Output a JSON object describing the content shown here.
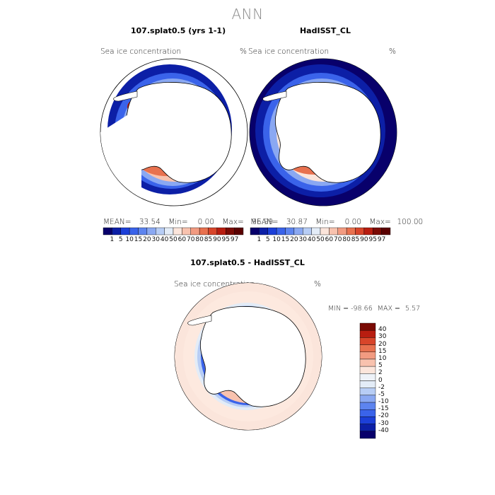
{
  "page_title": "ANN",
  "panels": {
    "model": {
      "title": "107.splat0.5 (yrs 1-1)",
      "field": "Sea ice concentration",
      "units": "%",
      "stats": {
        "mean_label": "MEAN=",
        "mean": "33.54",
        "min_label": "Min=",
        "min": "0.00",
        "max_label": "Max=",
        "max": "96.99"
      }
    },
    "obs": {
      "title": "HadISST_CL",
      "field": "Sea ice concentration",
      "units": "%",
      "stats": {
        "mean_label": "MEAN=",
        "mean": "30.87",
        "min_label": "Min=",
        "min": "0.00",
        "max_label": "Max=",
        "max": "100.00"
      }
    },
    "diff": {
      "title": "107.splat0.5 - HadISST_CL",
      "field": "Sea ice concentration",
      "units": "%",
      "minmax": {
        "min_label": "MIN =",
        "min": "-98.66",
        "max_label": "MAX =",
        "max": "5.57"
      }
    }
  },
  "chart_data": [
    {
      "type": "heatmap",
      "title": "107.splat0.5 (yrs 1-1)",
      "field": "Sea ice concentration",
      "units": "%",
      "projection": "south-polar-stereographic",
      "mean": 33.54,
      "min": 0.0,
      "max": 96.99
    },
    {
      "type": "heatmap",
      "title": "HadISST_CL",
      "field": "Sea ice concentration",
      "units": "%",
      "projection": "south-polar-stereographic",
      "mean": 30.87,
      "min": 0.0,
      "max": 100.0
    },
    {
      "type": "heatmap",
      "title": "107.splat0.5 - HadISST_CL",
      "field": "Sea ice concentration",
      "units": "%",
      "projection": "south-polar-stereographic",
      "min": -98.66,
      "max": 5.57
    }
  ],
  "colorbars": {
    "main": {
      "labels": [
        "1",
        "5",
        "10",
        "15",
        "20",
        "30",
        "40",
        "50",
        "60",
        "70",
        "80",
        "85",
        "90",
        "95",
        "97"
      ],
      "colors": [
        "#08006b",
        "#0c1fa6",
        "#1c3fd8",
        "#3a63ea",
        "#5d84ef",
        "#8aa8f2",
        "#b7cdf5",
        "#e3ecf7",
        "#fbe5db",
        "#f8c2ae",
        "#f29b81",
        "#e8714f",
        "#d8452a",
        "#b81d10",
        "#7a0a04",
        "#5a0000"
      ]
    },
    "diff": {
      "labels": [
        "40",
        "30",
        "20",
        "15",
        "10",
        "5",
        "2",
        "0",
        "-2",
        "-5",
        "-10",
        "-15",
        "-20",
        "-30",
        "-40"
      ],
      "colors": [
        "#7a0a04",
        "#b81d10",
        "#d8452a",
        "#e8714f",
        "#f29b81",
        "#f8c2ae",
        "#fbe5db",
        "#eef2f8",
        "#e3ecf7",
        "#b7cdf5",
        "#8aa8f2",
        "#5d84ef",
        "#3a63ea",
        "#1c3fd8",
        "#0c1fa6",
        "#08006b"
      ]
    }
  }
}
